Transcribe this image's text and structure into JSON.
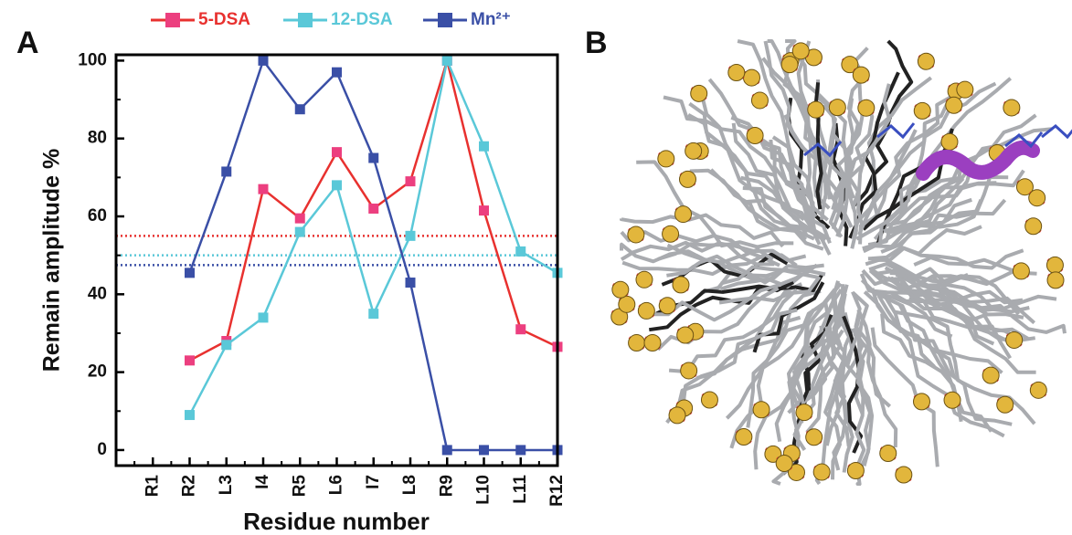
{
  "panel_labels": [
    "A",
    "B"
  ],
  "chart_data": {
    "type": "line",
    "y_label": "Remain amplitude %",
    "x_label": "Residue number",
    "categories": [
      "R1",
      "R2",
      "L3",
      "I4",
      "R5",
      "L6",
      "I7",
      "L8",
      "R9",
      "L10",
      "L11",
      "R12"
    ],
    "series": [
      {
        "name": "5-DSA",
        "color": "#e8312f",
        "marker_color": "#ec3f7f",
        "threshold": 55,
        "values": [
          null,
          23,
          28,
          67,
          59.5,
          76.5,
          62,
          69,
          100,
          61.5,
          31,
          26.5
        ]
      },
      {
        "name": "12-DSA",
        "color": "#5ac8d8",
        "marker_color": "#5ac8d8",
        "threshold": 50,
        "values": [
          null,
          9,
          27,
          34,
          56,
          68,
          35,
          55,
          100,
          78,
          51,
          45.5
        ]
      },
      {
        "name": "Mn²⁺",
        "color": "#3a4fa6",
        "marker_color": "#3a4fa6",
        "threshold": 47.5,
        "values": [
          null,
          45.5,
          71.5,
          100,
          87.5,
          97,
          75,
          43,
          0,
          0,
          0,
          0
        ]
      }
    ],
    "ylim": [
      -4,
      101.5
    ],
    "yticks": [
      0,
      20,
      40,
      60,
      80,
      100
    ]
  }
}
